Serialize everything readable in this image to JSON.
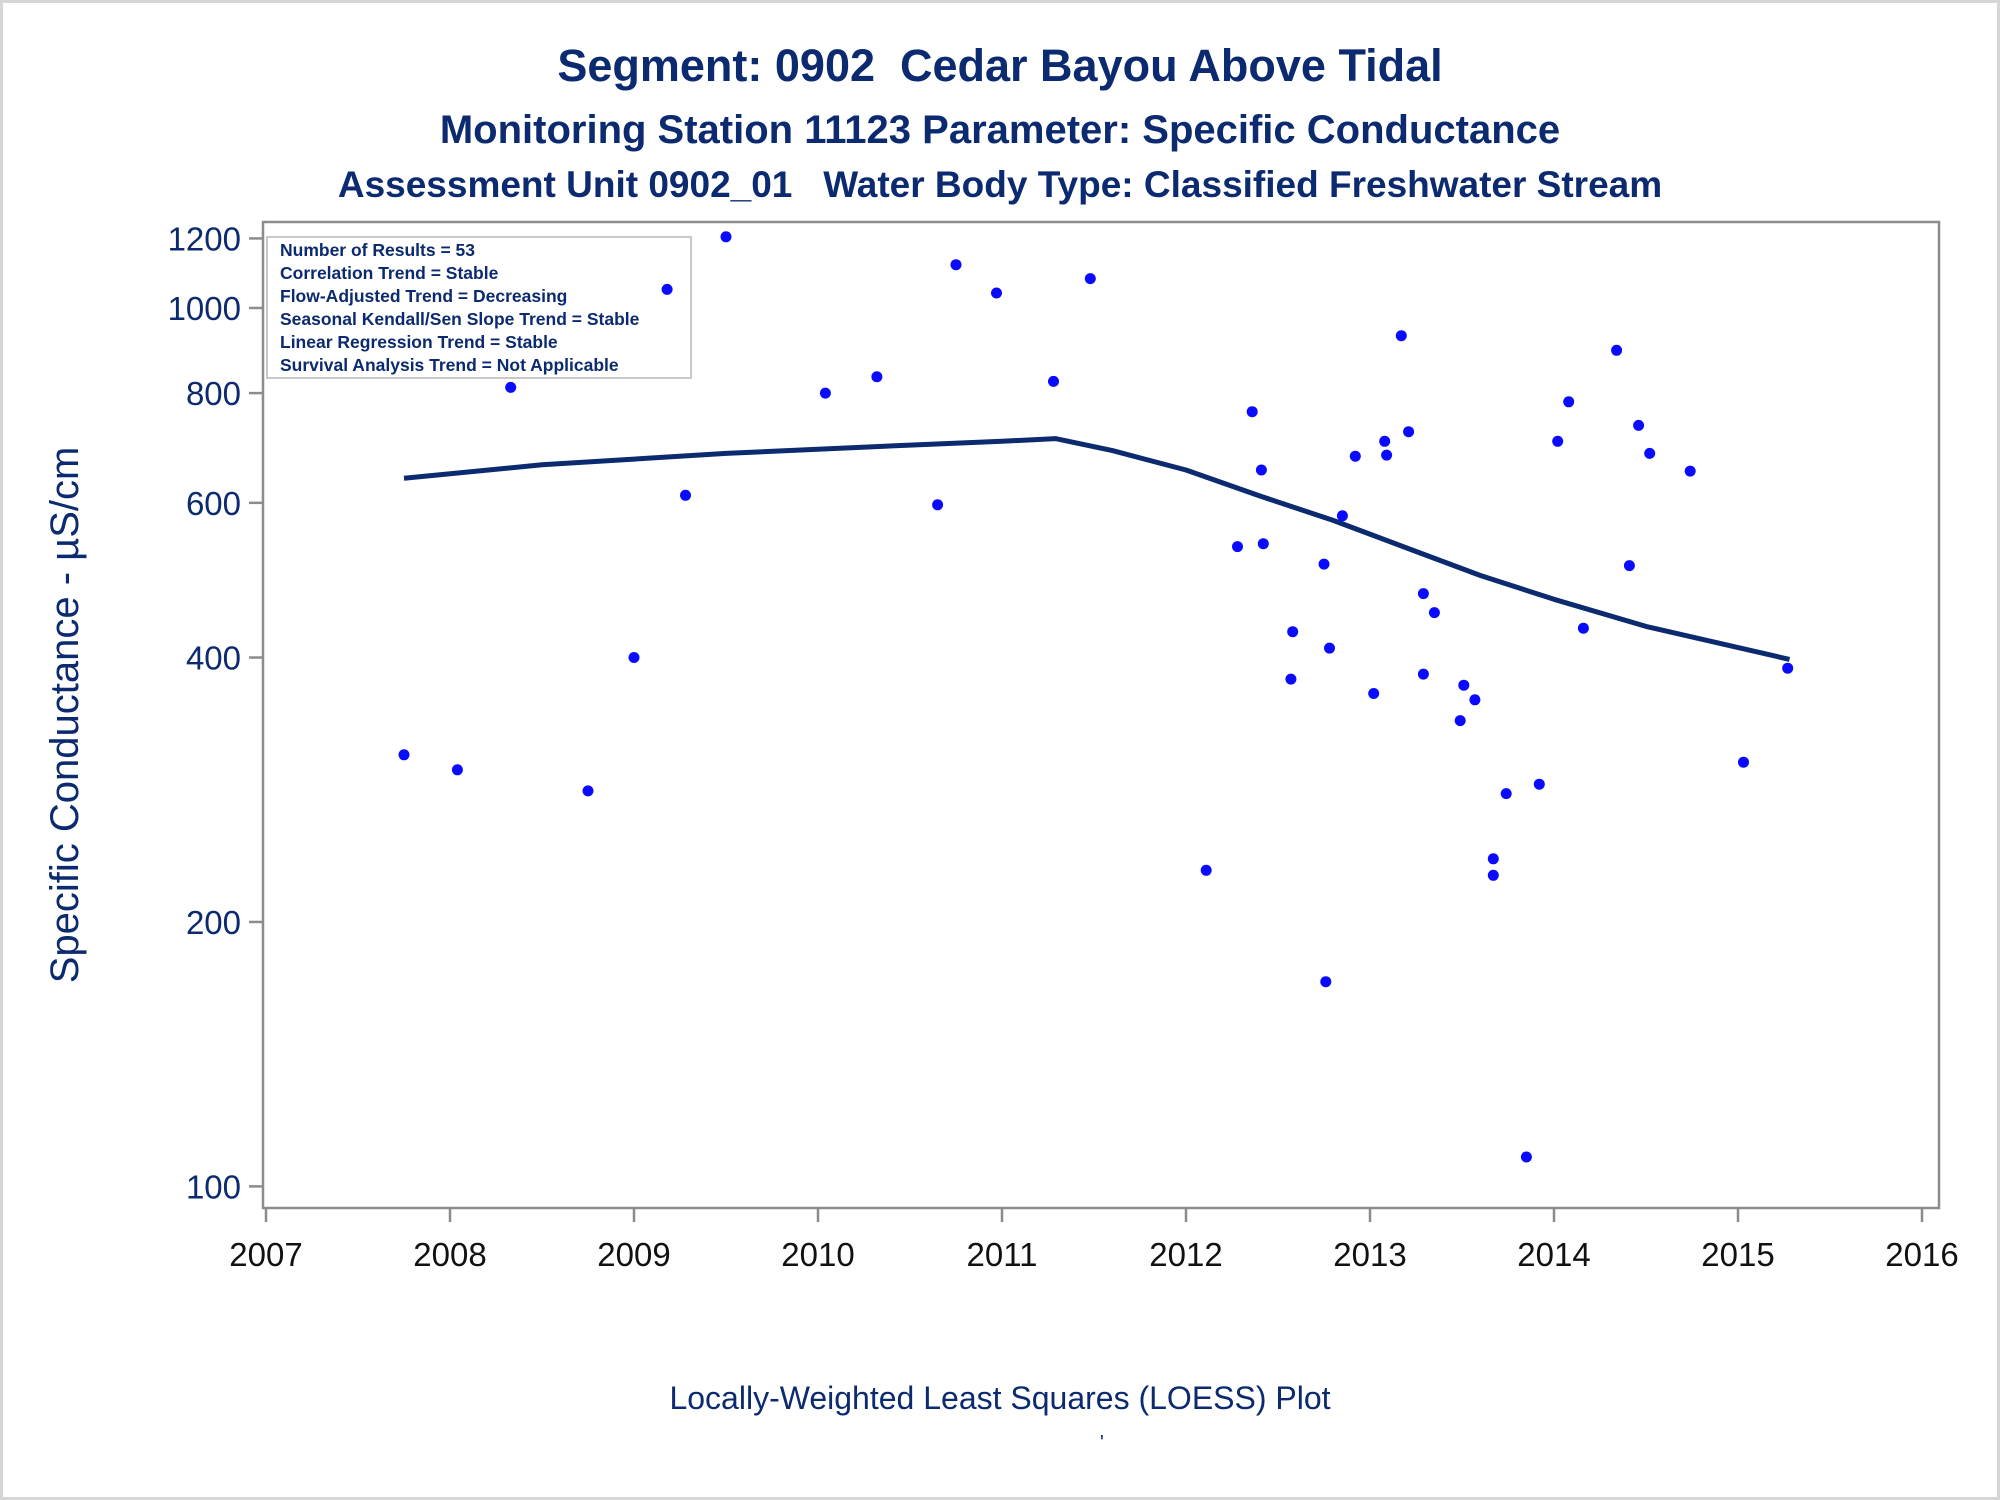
{
  "header": {
    "title": "Segment: 0902  Cedar Bayou Above Tidal",
    "subtitle": "Monitoring Station 11123 Parameter: Specific Conductance",
    "subtitle2": "Assessment Unit 0902_01   Water Body Type: Classified Freshwater Stream"
  },
  "annotations": [
    "Number of Results = 53",
    "Correlation Trend = Stable",
    "Flow-Adjusted Trend = Decreasing",
    "Seasonal Kendall/Sen Slope Trend = Stable",
    "Linear Regression Trend = Stable",
    "Survival Analysis Trend = Not Applicable"
  ],
  "footer": {
    "caption": "Locally-Weighted Least Squares (LOESS) Plot",
    "mark": "'"
  },
  "chart_data": {
    "type": "scatter",
    "ylabel": "Specific Conductance -  µS/cm",
    "xlabel": "",
    "yscale": "log",
    "xlim": [
      2007,
      2016
    ],
    "ylim": [
      97,
      1230
    ],
    "xticks": [
      2007,
      2008,
      2009,
      2010,
      2011,
      2012,
      2013,
      2014,
      2015,
      2016
    ],
    "yticks": [
      100,
      200,
      400,
      600,
      800,
      1000,
      1200
    ],
    "grid": false,
    "colors": {
      "points": "#0a0aff",
      "line": "#0b2a6f",
      "text": "#0b2a6f",
      "axis": "#8c8c8c"
    },
    "points": [
      [
        2007.75,
        310
      ],
      [
        2008.04,
        298
      ],
      [
        2008.33,
        812
      ],
      [
        2008.75,
        282
      ],
      [
        2009.0,
        400
      ],
      [
        2009.18,
        1050
      ],
      [
        2009.28,
        612
      ],
      [
        2009.5,
        1205
      ],
      [
        2010.04,
        800
      ],
      [
        2010.32,
        835
      ],
      [
        2010.65,
        597
      ],
      [
        2010.75,
        1120
      ],
      [
        2010.97,
        1040
      ],
      [
        2011.28,
        825
      ],
      [
        2011.48,
        1080
      ],
      [
        2012.11,
        229
      ],
      [
        2012.28,
        535
      ],
      [
        2012.36,
        762
      ],
      [
        2012.41,
        654
      ],
      [
        2012.42,
        539
      ],
      [
        2012.57,
        378
      ],
      [
        2012.58,
        428
      ],
      [
        2012.75,
        511
      ],
      [
        2012.76,
        171
      ],
      [
        2012.78,
        410
      ],
      [
        2012.85,
        580
      ],
      [
        2012.92,
        678
      ],
      [
        2013.02,
        364
      ],
      [
        2013.08,
        705
      ],
      [
        2013.09,
        680
      ],
      [
        2013.17,
        930
      ],
      [
        2013.21,
        723
      ],
      [
        2013.29,
        383
      ],
      [
        2013.29,
        473
      ],
      [
        2013.35,
        450
      ],
      [
        2013.49,
        339
      ],
      [
        2013.51,
        372
      ],
      [
        2013.57,
        358
      ],
      [
        2013.67,
        226
      ],
      [
        2013.67,
        236
      ],
      [
        2013.74,
        280
      ],
      [
        2013.85,
        108
      ],
      [
        2013.92,
        287
      ],
      [
        2014.02,
        705
      ],
      [
        2014.08,
        782
      ],
      [
        2014.16,
        432
      ],
      [
        2014.34,
        895
      ],
      [
        2014.41,
        509
      ],
      [
        2014.46,
        735
      ],
      [
        2014.52,
        683
      ],
      [
        2014.74,
        652
      ],
      [
        2015.03,
        304
      ],
      [
        2015.27,
        389
      ]
    ],
    "loess": [
      [
        2007.75,
        640
      ],
      [
        2008.5,
        663
      ],
      [
        2009.5,
        683
      ],
      [
        2010.5,
        698
      ],
      [
        2011.0,
        705
      ],
      [
        2011.29,
        710
      ],
      [
        2011.6,
        688
      ],
      [
        2012.0,
        654
      ],
      [
        2012.4,
        611
      ],
      [
        2012.8,
        573
      ],
      [
        2013.2,
        533
      ],
      [
        2013.6,
        496
      ],
      [
        2014.0,
        466
      ],
      [
        2014.5,
        434
      ],
      [
        2015.28,
        398
      ]
    ]
  }
}
